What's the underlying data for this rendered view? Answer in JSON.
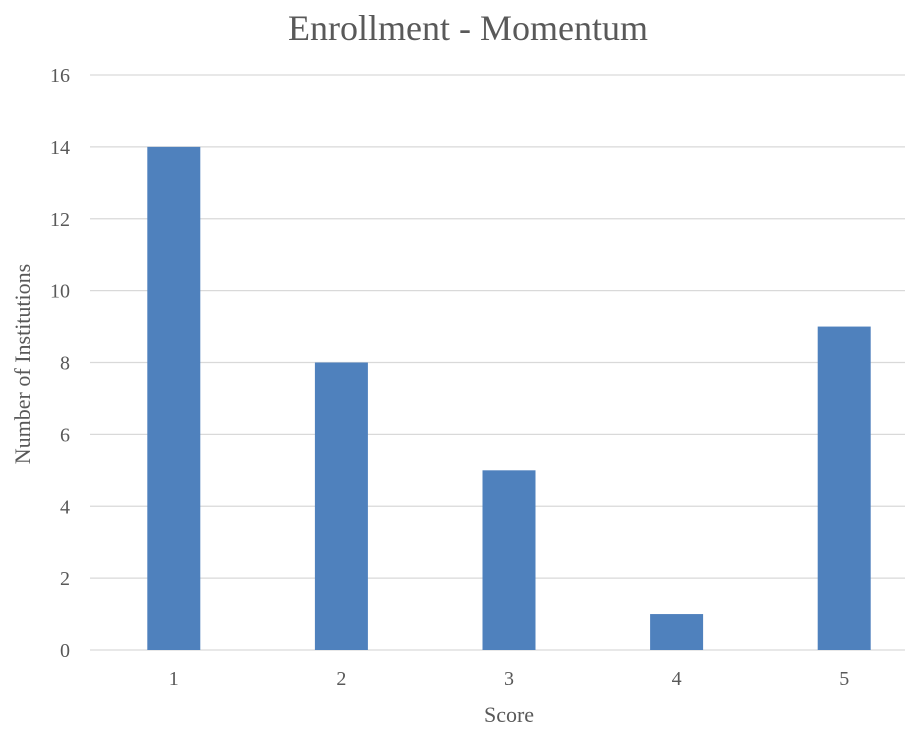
{
  "chart_data": {
    "type": "bar",
    "title": "Enrollment - Momentum",
    "xlabel": "Score",
    "ylabel": "Number of Institutions",
    "categories": [
      "1",
      "2",
      "3",
      "4",
      "5"
    ],
    "values": [
      14,
      8,
      5,
      1,
      9
    ],
    "ylim": [
      0,
      16
    ],
    "yticks": [
      "0",
      "2",
      "4",
      "6",
      "8",
      "10",
      "12",
      "14",
      "16"
    ],
    "grid": true,
    "bar_color": "#4F81BD",
    "grid_color": "#D9D9D9"
  }
}
